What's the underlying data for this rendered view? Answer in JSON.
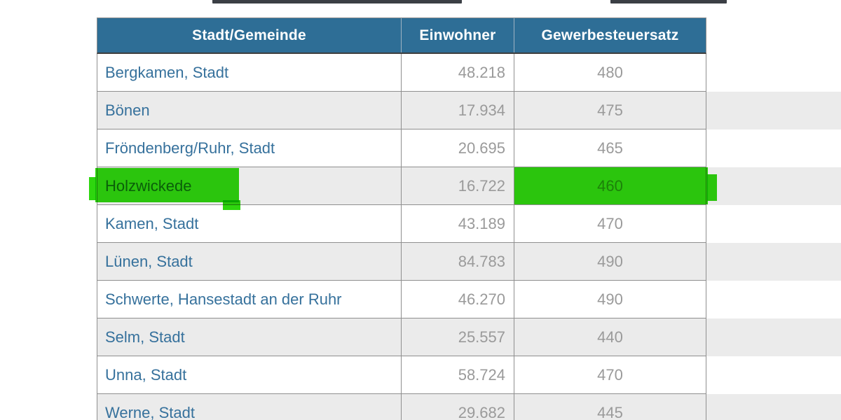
{
  "table": {
    "headers": [
      "Stadt/Gemeinde",
      "Einwohner",
      "Gewerbesteuersatz"
    ],
    "rows": [
      {
        "name": "Bergkamen, Stadt",
        "einwohner": "48.218",
        "gewerbesteuersatz": "480",
        "highlighted": false
      },
      {
        "name": "Bönen",
        "einwohner": "17.934",
        "gewerbesteuersatz": "475",
        "highlighted": false
      },
      {
        "name": "Fröndenberg/Ruhr, Stadt",
        "einwohner": "20.695",
        "gewerbesteuersatz": "465",
        "highlighted": false
      },
      {
        "name": "Holzwickede",
        "einwohner": "16.722",
        "gewerbesteuersatz": "460",
        "highlighted": true
      },
      {
        "name": "Kamen, Stadt",
        "einwohner": "43.189",
        "gewerbesteuersatz": "470",
        "highlighted": false
      },
      {
        "name": "Lünen, Stadt",
        "einwohner": "84.783",
        "gewerbesteuersatz": "490",
        "highlighted": false
      },
      {
        "name": "Schwerte, Hansestadt an der Ruhr",
        "einwohner": "46.270",
        "gewerbesteuersatz": "490",
        "highlighted": false
      },
      {
        "name": "Selm, Stadt",
        "einwohner": "25.557",
        "gewerbesteuersatz": "440",
        "highlighted": false
      },
      {
        "name": "Unna, Stadt",
        "einwohner": "58.724",
        "gewerbesteuersatz": "470",
        "highlighted": false
      },
      {
        "name": "Werne, Stadt",
        "einwohner": "29.682",
        "gewerbesteuersatz": "445",
        "highlighted": false
      }
    ],
    "colors": {
      "header_bg": "#2e6e96",
      "header_text": "#ffffff",
      "row_bg": "#ffffff",
      "row_alt_bg": "#ebebeb",
      "link_color": "#36719c",
      "number_color": "#9a9a9a",
      "border_color": "#8f8f8f",
      "highlight_green": "#2ed60e"
    }
  }
}
